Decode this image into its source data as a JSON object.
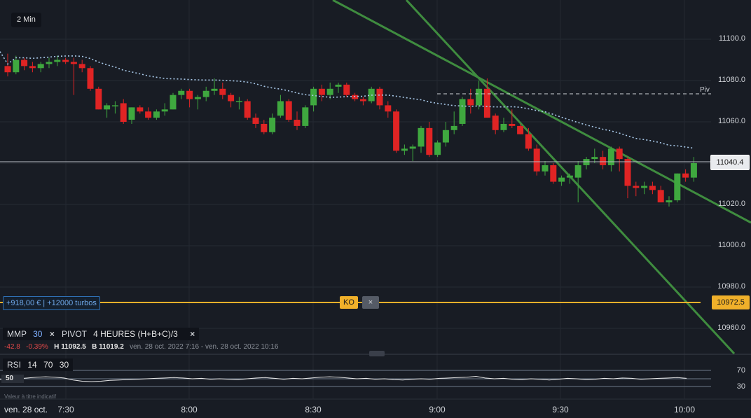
{
  "timeframe": "2 Min",
  "y_axis": {
    "labels": [
      "11100.0",
      "11080.0",
      "11060.0",
      "11040.0",
      "11020.0",
      "11000.0",
      "10980.0",
      "10960.0"
    ],
    "min": 10950,
    "max": 11115
  },
  "last_price": {
    "value": "11040.4",
    "color": "#ffffff"
  },
  "ko_price": {
    "value": "10972.5",
    "color": "#f0b02a"
  },
  "pivot_label": "Piv",
  "position": {
    "text": "+918,00 € | +12000 turbos"
  },
  "ko": {
    "label": "KO",
    "close_icon": "×"
  },
  "indicators": {
    "mmp": {
      "name": "MMP",
      "period": "30",
      "close": "×"
    },
    "pivot": {
      "name": "PIVOT",
      "setting": "4 HEURES  (H+B+C)/3",
      "close": "×"
    }
  },
  "stats": {
    "change": "-42.8",
    "change_pct": "-0.39%",
    "high_label": "H",
    "high": "11092.5",
    "low_label": "B",
    "low": "11019.2",
    "period": "ven. 28 oct. 2022 7:16 - ven. 28 oct. 2022 10:16"
  },
  "rsi": {
    "name": "RSI",
    "p1": "14",
    "p2": "70",
    "p3": "30",
    "current": "50",
    "upper": "70",
    "lower": "30",
    "values": [
      48,
      49,
      50,
      52,
      54,
      55,
      54,
      52,
      47,
      44,
      43,
      44,
      46,
      47,
      48,
      49,
      50,
      51,
      52,
      53,
      52,
      50,
      51,
      49,
      50,
      49,
      48,
      50,
      52,
      53,
      51,
      49,
      51,
      50,
      52,
      54,
      55,
      54,
      52,
      50,
      51,
      49,
      50,
      48,
      47,
      49,
      50,
      49,
      51,
      52,
      53,
      54,
      56,
      52,
      50,
      51,
      49,
      48,
      50,
      49,
      47,
      49,
      51,
      50,
      48,
      49,
      51,
      50,
      52,
      51,
      49,
      50,
      51,
      52,
      53,
      51
    ]
  },
  "note": "Valeur à titre indicatif",
  "x_axis": {
    "date": "ven. 28 oct.",
    "times": [
      "7:30",
      "8:00",
      "8:30",
      "9:00",
      "9:30",
      "10:00"
    ]
  },
  "colors": {
    "up": "#3fa83f",
    "down": "#e02424",
    "trendline": "#3f8c3f",
    "mmp": "#a8c8e8",
    "background": "#181c24"
  },
  "chart_data": {
    "type": "candlestick",
    "timeframe_minutes": 2,
    "mmp_period": 30,
    "pivot": 11073,
    "ko_level": 10972.5,
    "last": 11040.4,
    "candles": [
      [
        11087,
        11093,
        11082,
        11084
      ],
      [
        11084,
        11092,
        11083,
        11090
      ],
      [
        11090,
        11091,
        11085,
        11087
      ],
      [
        11087,
        11089,
        11084,
        11086
      ],
      [
        11086,
        11089,
        11084,
        11088
      ],
      [
        11088,
        11091,
        11086,
        11089
      ],
      [
        11089,
        11092,
        11087,
        11090
      ],
      [
        11090,
        11091,
        11088,
        11089
      ],
      [
        11089,
        11091,
        11073,
        11088
      ],
      [
        11088,
        11090,
        11084,
        11086
      ],
      [
        11086,
        11087,
        11075,
        11076
      ],
      [
        11076,
        11077,
        11066,
        11066
      ],
      [
        11066,
        11069,
        11062,
        11068
      ],
      [
        11068,
        11070,
        11064,
        11068
      ],
      [
        11069,
        11071,
        11059,
        11060
      ],
      [
        11061,
        11067,
        11059,
        11067
      ],
      [
        11067,
        11068,
        11064,
        11065
      ],
      [
        11065,
        11067,
        11061,
        11062
      ],
      [
        11062,
        11066,
        11061,
        11065
      ],
      [
        11065,
        11069,
        11063,
        11066
      ],
      [
        11066,
        11074,
        11066,
        11073
      ],
      [
        11073,
        11076,
        11071,
        11075
      ],
      [
        11075,
        11076,
        11067,
        11071
      ],
      [
        11071,
        11073,
        11066,
        11072
      ],
      [
        11072,
        11077,
        11070,
        11075
      ],
      [
        11075,
        11081,
        11073,
        11076
      ],
      [
        11076,
        11079,
        11071,
        11073
      ],
      [
        11073,
        11074,
        11067,
        11070
      ],
      [
        11070,
        11072,
        11066,
        11070
      ],
      [
        11070,
        11071,
        11061,
        11062
      ],
      [
        11062,
        11064,
        11057,
        11059
      ],
      [
        11059,
        11061,
        11054,
        11055
      ],
      [
        11055,
        11064,
        11054,
        11062
      ],
      [
        11063,
        11073,
        11062,
        11070
      ],
      [
        11070,
        11071,
        11060,
        11061
      ],
      [
        11061,
        11065,
        11056,
        11058
      ],
      [
        11058,
        11068,
        11057,
        11067
      ],
      [
        11068,
        11077,
        11065,
        11076
      ],
      [
        11076,
        11078,
        11070,
        11073
      ],
      [
        11073,
        11079,
        11071,
        11076
      ],
      [
        11077,
        11079,
        11074,
        11078
      ],
      [
        11078,
        11079,
        11072,
        11073
      ],
      [
        11073,
        11074,
        11070,
        11071
      ],
      [
        11071,
        11072,
        11068,
        11070
      ],
      [
        11070,
        11077,
        11069,
        11076
      ],
      [
        11076,
        11077,
        11066,
        11068
      ],
      [
        11068,
        11070,
        11062,
        11065
      ],
      [
        11065,
        11066,
        11045,
        11046
      ],
      [
        11046,
        11049,
        11044,
        11047
      ],
      [
        11047,
        11049,
        11041,
        11048
      ],
      [
        11048,
        11058,
        11045,
        11057
      ],
      [
        11057,
        11060,
        11043,
        11044
      ],
      [
        11044,
        11051,
        11043,
        11050
      ],
      [
        11050,
        11060,
        11048,
        11056
      ],
      [
        11056,
        11065,
        11054,
        11058
      ],
      [
        11059,
        11072,
        11058,
        11071
      ],
      [
        11071,
        11076,
        11064,
        11068
      ],
      [
        11068,
        11080,
        11066,
        11076
      ],
      [
        11076,
        11081,
        11062,
        11062
      ],
      [
        11063,
        11064,
        11054,
        11056
      ],
      [
        11056,
        11062,
        11055,
        11059
      ],
      [
        11059,
        11066,
        11057,
        11058
      ],
      [
        11058,
        11059,
        11054,
        11054
      ],
      [
        11054,
        11057,
        11046,
        11047
      ],
      [
        11047,
        11049,
        11034,
        11036
      ],
      [
        11036,
        11041,
        11034,
        11039
      ],
      [
        11039,
        11040,
        11030,
        11031
      ],
      [
        11031,
        11034,
        11029,
        11033
      ],
      [
        11033,
        11035,
        11030,
        11034
      ],
      [
        11033,
        11041,
        11021,
        11039
      ],
      [
        11039,
        11043,
        11037,
        11042
      ],
      [
        11042,
        11047,
        11040,
        11043
      ],
      [
        11043,
        11046,
        11037,
        11039
      ],
      [
        11039,
        11048,
        11036,
        11047
      ],
      [
        11047,
        11048,
        11036,
        11042
      ],
      [
        11042,
        11043,
        11023,
        11029
      ],
      [
        11029,
        11031,
        11024,
        11028
      ],
      [
        11028,
        11031,
        11025,
        11029
      ],
      [
        11029,
        11031,
        11025,
        11027
      ],
      [
        11027,
        11029,
        11021,
        11021
      ],
      [
        11021,
        11024,
        11019,
        11022
      ],
      [
        11022,
        11035,
        11021,
        11035
      ],
      [
        11035,
        11037,
        11031,
        11033
      ],
      [
        11033,
        11043,
        11031,
        11040
      ]
    ]
  }
}
